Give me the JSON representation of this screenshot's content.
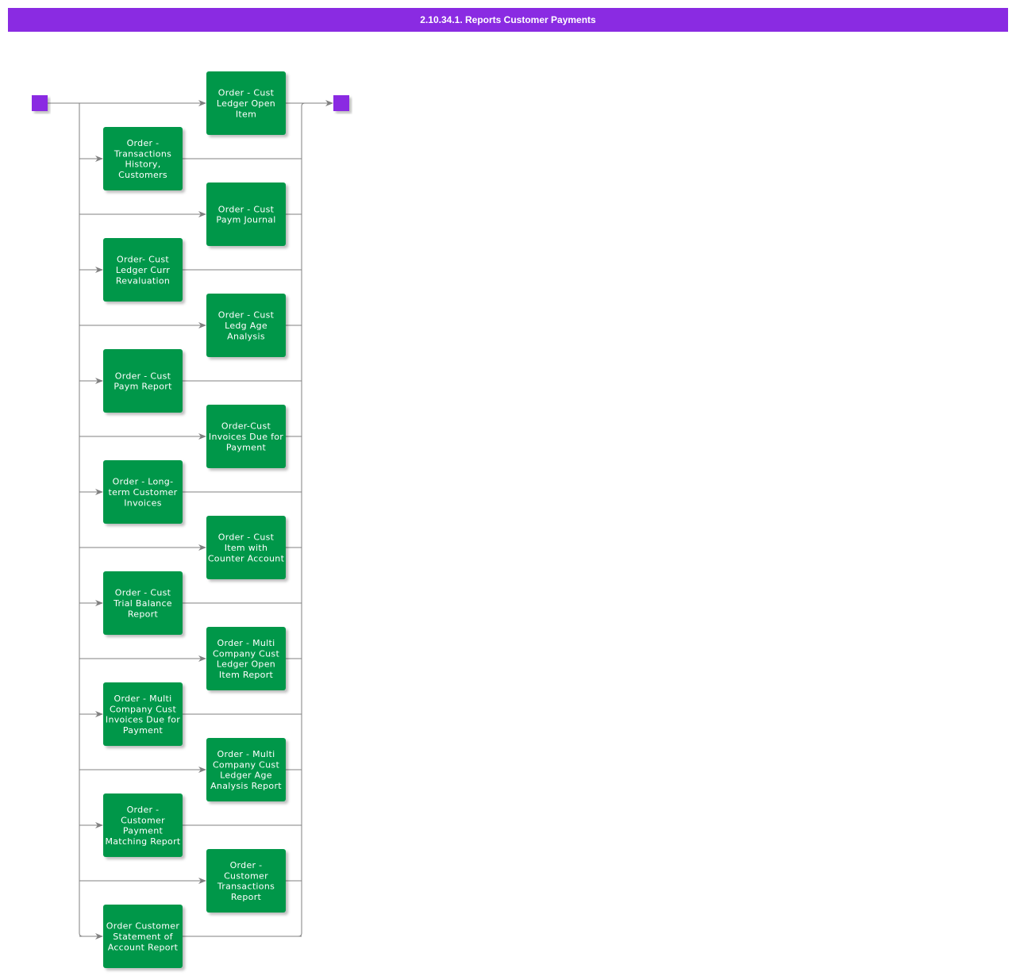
{
  "title": "2.10.34.1. Reports Customer Payments",
  "colors": {
    "title_bar": "#8a2be2",
    "node": "#00974a",
    "node_text": "#ffffff",
    "terminal": "#8a2be2",
    "edge": "#808080"
  },
  "nodes": [
    {
      "label": "Order - Cust Ledger Open Item",
      "lines": [
        "Order - Cust",
        "Ledger Open",
        "Item"
      ]
    },
    {
      "label": "Order - Transactions History, Customers",
      "lines": [
        "Order -",
        "Transactions",
        "History,",
        "Customers"
      ]
    },
    {
      "label": "Order -  Cust Paym Journal",
      "lines": [
        "Order -  Cust",
        "Paym Journal"
      ]
    },
    {
      "label": "Order- Cust Ledger Curr Revaluation",
      "lines": [
        "Order- Cust",
        "Ledger Curr",
        "Revaluation"
      ]
    },
    {
      "label": "Order - Cust Ledg Age Analysis",
      "lines": [
        "Order - Cust",
        "Ledg Age",
        "Analysis"
      ]
    },
    {
      "label": "Order - Cust Paym Report",
      "lines": [
        "Order - Cust",
        "Paym Report"
      ]
    },
    {
      "label": "Order-Cust Invoices Due for Payment",
      "lines": [
        "Order-Cust",
        "Invoices Due for",
        "Payment"
      ]
    },
    {
      "label": "Order - Long-term Customer Invoices",
      "lines": [
        "Order - Long-",
        "term Customer",
        "Invoices"
      ]
    },
    {
      "label": "Order - Cust Item with Counter Account",
      "lines": [
        "Order - Cust",
        "Item with",
        "Counter Account"
      ]
    },
    {
      "label": "Order - Cust Trial Balance Report",
      "lines": [
        "Order - Cust",
        "Trial Balance",
        "Report"
      ]
    },
    {
      "label": "Order - Multi Company Cust Ledger Open Item Report",
      "lines": [
        "Order - Multi",
        "Company Cust",
        "Ledger Open",
        "Item Report"
      ]
    },
    {
      "label": "Order - Multi Company Cust Invoices Due for Payment",
      "lines": [
        "Order - Multi",
        "Company Cust",
        "Invoices Due for",
        "Payment"
      ]
    },
    {
      "label": "Order - Multi Company Cust Ledger Age Analysis Report",
      "lines": [
        "Order - Multi",
        "Company Cust",
        "Ledger Age",
        "Analysis Report"
      ]
    },
    {
      "label": "Order - Customer Payment Matching Report",
      "lines": [
        "Order -",
        "Customer",
        "Payment",
        "Matching Report"
      ]
    },
    {
      "label": "Order - Customer Transactions Report",
      "lines": [
        "Order -",
        "Customer",
        "Transactions",
        "Report"
      ]
    },
    {
      "label": "Order Customer Statement of Account Report",
      "lines": [
        "Order Customer",
        "Statement of",
        "Account Report"
      ]
    }
  ]
}
